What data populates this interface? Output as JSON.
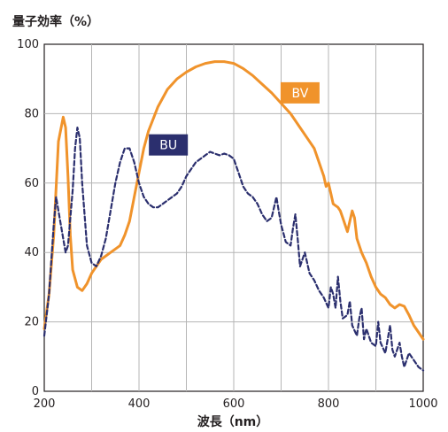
{
  "chart_data": {
    "type": "line",
    "ylabel": "量子効率（%）",
    "xlabel": "波長（nm）",
    "xlim": [
      200,
      1000
    ],
    "ylim": [
      0,
      100
    ],
    "xticks": [
      200,
      400,
      600,
      800,
      1000
    ],
    "yticks": [
      0,
      20,
      40,
      60,
      80,
      100
    ],
    "grid": true,
    "series": [
      {
        "name": "BV",
        "color": "#f0932b",
        "style": "solid",
        "points": [
          [
            200,
            18
          ],
          [
            210,
            28
          ],
          [
            220,
            45
          ],
          [
            230,
            72
          ],
          [
            240,
            79
          ],
          [
            245,
            76
          ],
          [
            250,
            62
          ],
          [
            255,
            45
          ],
          [
            260,
            35
          ],
          [
            270,
            30
          ],
          [
            280,
            29
          ],
          [
            290,
            31
          ],
          [
            300,
            34
          ],
          [
            320,
            38
          ],
          [
            340,
            40
          ],
          [
            360,
            42
          ],
          [
            370,
            45
          ],
          [
            380,
            49
          ],
          [
            390,
            56
          ],
          [
            400,
            63
          ],
          [
            410,
            70
          ],
          [
            420,
            75
          ],
          [
            440,
            82
          ],
          [
            460,
            87
          ],
          [
            480,
            90
          ],
          [
            500,
            92
          ],
          [
            520,
            93.5
          ],
          [
            540,
            94.5
          ],
          [
            560,
            95
          ],
          [
            580,
            95
          ],
          [
            600,
            94.5
          ],
          [
            620,
            93
          ],
          [
            640,
            91
          ],
          [
            660,
            88.5
          ],
          [
            680,
            86
          ],
          [
            700,
            83
          ],
          [
            720,
            80
          ],
          [
            740,
            76
          ],
          [
            760,
            72
          ],
          [
            770,
            70
          ],
          [
            780,
            66
          ],
          [
            790,
            62
          ],
          [
            795,
            59
          ],
          [
            800,
            60
          ],
          [
            805,
            57
          ],
          [
            810,
            54
          ],
          [
            820,
            53
          ],
          [
            825,
            52
          ],
          [
            830,
            50
          ],
          [
            840,
            46
          ],
          [
            850,
            52
          ],
          [
            855,
            50
          ],
          [
            860,
            44
          ],
          [
            870,
            40
          ],
          [
            880,
            37
          ],
          [
            890,
            33
          ],
          [
            900,
            30
          ],
          [
            910,
            28
          ],
          [
            920,
            27
          ],
          [
            930,
            25
          ],
          [
            940,
            24
          ],
          [
            950,
            25
          ],
          [
            960,
            24.5
          ],
          [
            970,
            22
          ],
          [
            980,
            19
          ],
          [
            990,
            17
          ],
          [
            1000,
            15
          ]
        ]
      },
      {
        "name": "BU",
        "color": "#2b2f6e",
        "style": "dashed",
        "points": [
          [
            200,
            16
          ],
          [
            210,
            28
          ],
          [
            220,
            48
          ],
          [
            225,
            56
          ],
          [
            230,
            52
          ],
          [
            240,
            44
          ],
          [
            245,
            40
          ],
          [
            250,
            42
          ],
          [
            260,
            58
          ],
          [
            265,
            70
          ],
          [
            270,
            76
          ],
          [
            275,
            73
          ],
          [
            280,
            60
          ],
          [
            290,
            42
          ],
          [
            300,
            37
          ],
          [
            310,
            36
          ],
          [
            320,
            39
          ],
          [
            330,
            44
          ],
          [
            340,
            52
          ],
          [
            350,
            60
          ],
          [
            360,
            66
          ],
          [
            370,
            70
          ],
          [
            380,
            70
          ],
          [
            390,
            66
          ],
          [
            400,
            60
          ],
          [
            410,
            56
          ],
          [
            420,
            54
          ],
          [
            430,
            53
          ],
          [
            440,
            53
          ],
          [
            450,
            54
          ],
          [
            460,
            55
          ],
          [
            470,
            56
          ],
          [
            480,
            57
          ],
          [
            490,
            59
          ],
          [
            500,
            62
          ],
          [
            510,
            64
          ],
          [
            520,
            66
          ],
          [
            530,
            67
          ],
          [
            540,
            68
          ],
          [
            550,
            69
          ],
          [
            560,
            68.5
          ],
          [
            570,
            68
          ],
          [
            580,
            68.5
          ],
          [
            590,
            68
          ],
          [
            600,
            67
          ],
          [
            610,
            63
          ],
          [
            620,
            59
          ],
          [
            630,
            57
          ],
          [
            640,
            56
          ],
          [
            650,
            54
          ],
          [
            660,
            51
          ],
          [
            670,
            49
          ],
          [
            680,
            50
          ],
          [
            685,
            53
          ],
          [
            690,
            56
          ],
          [
            695,
            52
          ],
          [
            700,
            48
          ],
          [
            710,
            43
          ],
          [
            720,
            42
          ],
          [
            725,
            47
          ],
          [
            730,
            51
          ],
          [
            735,
            44
          ],
          [
            740,
            36
          ],
          [
            745,
            38
          ],
          [
            750,
            40
          ],
          [
            760,
            34
          ],
          [
            770,
            32
          ],
          [
            780,
            29
          ],
          [
            790,
            27
          ],
          [
            800,
            24
          ],
          [
            805,
            30
          ],
          [
            810,
            28
          ],
          [
            815,
            24
          ],
          [
            820,
            33
          ],
          [
            825,
            26
          ],
          [
            830,
            21
          ],
          [
            840,
            22
          ],
          [
            845,
            26
          ],
          [
            850,
            19
          ],
          [
            860,
            16
          ],
          [
            865,
            21
          ],
          [
            870,
            24
          ],
          [
            875,
            15
          ],
          [
            880,
            18
          ],
          [
            890,
            14
          ],
          [
            900,
            13
          ],
          [
            905,
            20
          ],
          [
            910,
            14
          ],
          [
            920,
            11
          ],
          [
            930,
            19
          ],
          [
            935,
            12
          ],
          [
            940,
            10
          ],
          [
            950,
            14
          ],
          [
            955,
            10
          ],
          [
            960,
            7
          ],
          [
            970,
            11
          ],
          [
            980,
            9
          ],
          [
            990,
            7
          ],
          [
            1000,
            6
          ]
        ]
      }
    ]
  }
}
